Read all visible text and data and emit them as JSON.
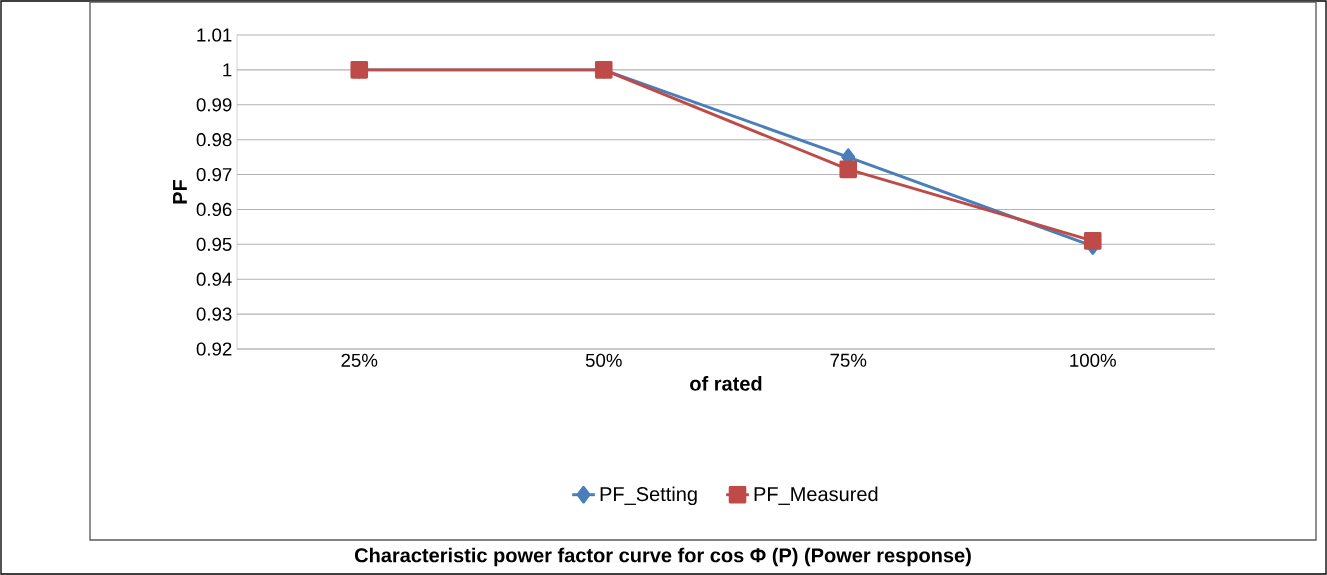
{
  "chart_data": {
    "type": "line",
    "xlabel": "of rated",
    "ylabel": "PF",
    "categories": [
      "25%",
      "50%",
      "75%",
      "100%"
    ],
    "series": [
      {
        "name": "PF_Setting",
        "color": "#4a7ebb",
        "marker": "diamond",
        "values": [
          1,
          1,
          0.975,
          0.9495
        ]
      },
      {
        "name": "PF_Measured",
        "color": "#be4b48",
        "marker": "square",
        "values": [
          1,
          1,
          0.9715,
          0.951
        ]
      }
    ],
    "ylim": [
      0.92,
      1.01
    ],
    "yticks": [
      0.92,
      0.93,
      0.94,
      0.95,
      0.96,
      0.97,
      0.98,
      0.99,
      1,
      1.01
    ],
    "grid": "y",
    "legend": "bottom",
    "line_style": "solid",
    "annotations": [
      "Characteristic power factor curve for cos  Φ (P) (Power response)"
    ]
  }
}
